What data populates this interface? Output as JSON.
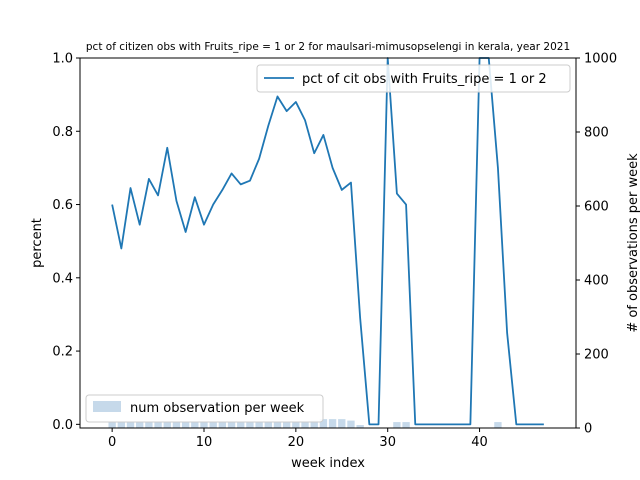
{
  "chart_data": {
    "type": "line",
    "title": "pct of citizen obs with Fruits_ripe = 1 or 2 for maulsari-mimusopselengi in kerala, year 2021",
    "xlabel": "week index",
    "ylabel": "percent",
    "y2label": "# of observations per week",
    "xlim": [
      -3.5,
      50.5
    ],
    "ylim": [
      -0.01,
      1.0
    ],
    "y2lim": [
      0,
      1000
    ],
    "xticks": [
      0,
      10,
      20,
      30,
      40
    ],
    "yticks": [
      0.0,
      0.2,
      0.4,
      0.6,
      0.8,
      1.0
    ],
    "y2ticks": [
      0,
      200,
      400,
      600,
      800,
      1000
    ],
    "grid": false,
    "line_series": {
      "name": "pct of cit obs with Fruits_ripe = 1 or 2",
      "color": "#1f77b4",
      "x": [
        0,
        1,
        2,
        3,
        4,
        5,
        6,
        7,
        8,
        9,
        10,
        11,
        12,
        13,
        14,
        15,
        16,
        17,
        18,
        19,
        20,
        21,
        22,
        23,
        24,
        25,
        26,
        27,
        28,
        29,
        30,
        31,
        32,
        33,
        34,
        35,
        36,
        37,
        38,
        39,
        40,
        41,
        42,
        43,
        44,
        45,
        46,
        47
      ],
      "values": [
        0.6,
        0.48,
        0.645,
        0.545,
        0.67,
        0.625,
        0.755,
        0.61,
        0.525,
        0.62,
        0.545,
        0.6,
        0.64,
        0.685,
        0.655,
        0.665,
        0.725,
        0.815,
        0.895,
        0.855,
        0.88,
        0.83,
        0.74,
        0.79,
        0.7,
        0.64,
        0.66,
        0.29,
        0.0,
        0.0,
        1.0,
        0.63,
        0.6,
        0.0,
        0.0,
        0.0,
        0.0,
        0.0,
        0.0,
        0.0,
        1.0,
        1.0,
        0.7,
        0.25,
        0.0,
        0.0,
        0.0,
        0.0
      ]
    },
    "bar_series": {
      "name": "num observation per week",
      "color": "#c6d9ea",
      "x": [
        0,
        1,
        2,
        3,
        4,
        5,
        6,
        7,
        8,
        9,
        10,
        11,
        12,
        13,
        14,
        15,
        16,
        17,
        18,
        19,
        20,
        21,
        22,
        23,
        24,
        25,
        26,
        27,
        28,
        29,
        30,
        31,
        32,
        33,
        34,
        35,
        36,
        37,
        38,
        39,
        40,
        41,
        42,
        43,
        44,
        45,
        46,
        47
      ],
      "values": [
        16,
        16,
        16,
        16,
        16,
        16,
        16,
        16,
        16,
        16,
        16,
        16,
        16,
        16,
        16,
        16,
        16,
        16,
        16,
        16,
        16,
        16,
        20,
        24,
        24,
        24,
        20,
        8,
        0,
        0,
        0,
        16,
        16,
        0,
        0,
        0,
        0,
        0,
        0,
        0,
        0,
        0,
        16,
        0,
        0,
        0,
        0,
        0
      ]
    },
    "legend_line_position": "top-right",
    "legend_bar_position": "bottom-left"
  }
}
